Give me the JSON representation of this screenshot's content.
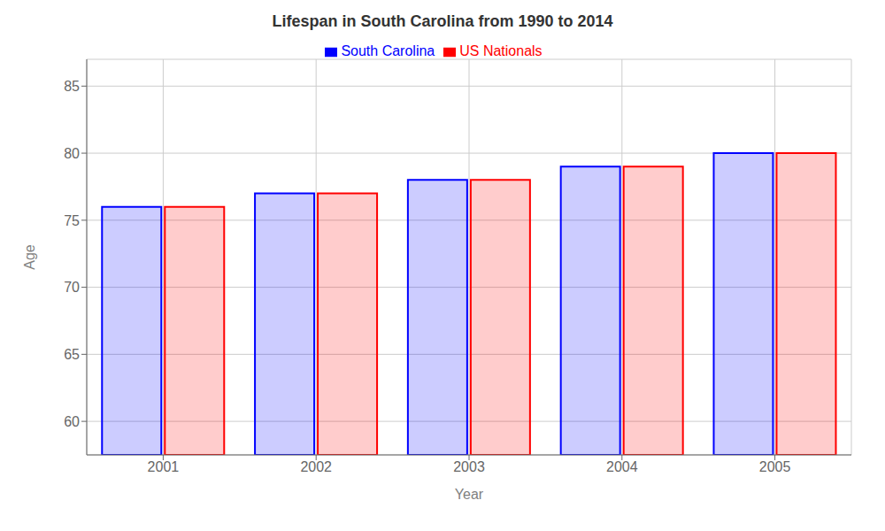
{
  "chart_data": {
    "type": "bar",
    "title": "Lifespan in South Carolina from 1990 to 2014",
    "xlabel": "Year",
    "ylabel": "Age",
    "categories": [
      "2001",
      "2002",
      "2003",
      "2004",
      "2005"
    ],
    "series": [
      {
        "name": "South Carolina",
        "color": "#0000ff",
        "values": [
          76,
          77,
          78,
          79,
          80
        ]
      },
      {
        "name": "US Nationals",
        "color": "#ff0000",
        "values": [
          76,
          77,
          78,
          79,
          80
        ]
      }
    ],
    "ylim": [
      57.5,
      87
    ],
    "yticks": [
      60,
      65,
      70,
      75,
      80,
      85
    ],
    "grid": true,
    "legend": "top"
  }
}
